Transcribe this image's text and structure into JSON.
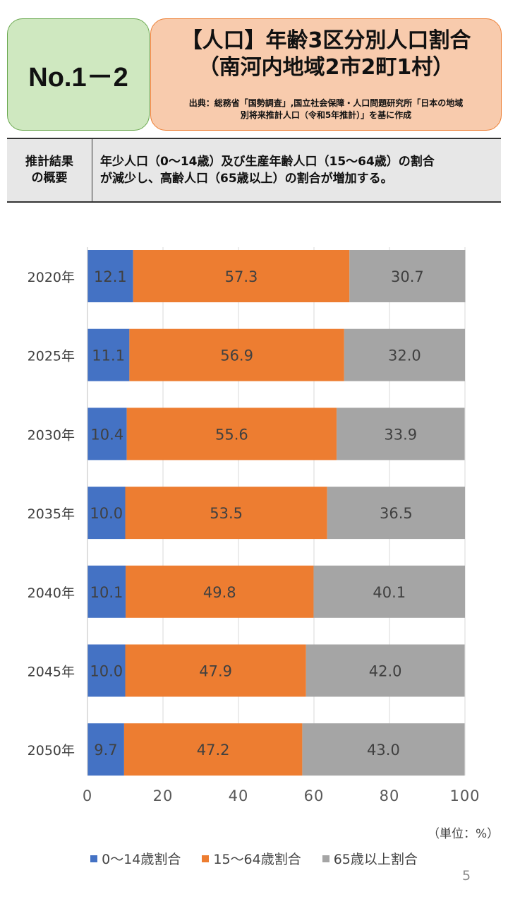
{
  "header": {
    "code": "No.1－2",
    "title_line1": "【人口】年齢3区分別人口割合",
    "title_line2": "（南河内地域2市2町1村）",
    "source_line1": "出典：総務省「国勢調査」,国立社会保障・人口問題研究所「日本の地域",
    "source_line2": "別将来推計人口（令和5年推計）」を基に作成"
  },
  "summary": {
    "label_line1": "推計結果",
    "label_line2": "の概要",
    "text_line1": "年少人口（0～14歳）及び生産年齢人口（15～64歳）の割合",
    "text_line2": "が減少し、高齢人口（65歳以上）の割合が増加する。"
  },
  "page_number": "5",
  "chart_data": {
    "type": "bar",
    "orientation": "horizontal",
    "stacked": true,
    "categories": [
      "2020年",
      "2025年",
      "2030年",
      "2035年",
      "2040年",
      "2045年",
      "2050年"
    ],
    "series": [
      {
        "name": "0～14歳割合",
        "color": "#4472c4",
        "values": [
          12.1,
          11.1,
          10.4,
          10.0,
          10.1,
          10.0,
          9.7
        ],
        "labels": [
          "12.1",
          "11.1",
          "10.4",
          "10.0",
          "10.1",
          "10.0",
          "9.7"
        ]
      },
      {
        "name": "15～64歳割合",
        "color": "#ed7d31",
        "values": [
          57.3,
          56.9,
          55.6,
          53.5,
          49.8,
          47.9,
          47.2
        ],
        "labels": [
          "57.3",
          "56.9",
          "55.6",
          "53.5",
          "49.8",
          "47.9",
          "47.2"
        ]
      },
      {
        "name": "65歳以上割合",
        "color": "#a5a5a5",
        "values": [
          30.7,
          32.0,
          33.9,
          36.5,
          40.1,
          42.0,
          43.0
        ],
        "labels": [
          "30.7",
          "32.0",
          "33.9",
          "36.5",
          "40.1",
          "42.0",
          "43.0"
        ]
      }
    ],
    "xlim": [
      0,
      100
    ],
    "xticks": [
      "0",
      "20",
      "40",
      "60",
      "80",
      "100"
    ],
    "unit_label": "（単位：%）",
    "grid": true,
    "legend_position": "bottom"
  }
}
